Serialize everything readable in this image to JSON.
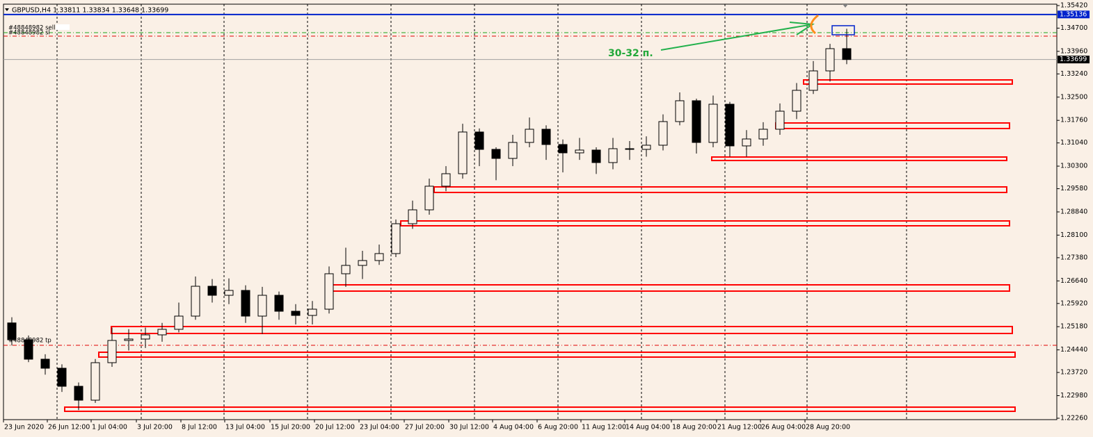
{
  "chart_data": {
    "type": "candlestick",
    "header": "GBPUSD,H4  1.33811 1.33834 1.33648 1.33699",
    "annotation": "30-32 п.",
    "background": "#faf0e6",
    "bull_color": "#faf0e6",
    "bear_color": "#000000",
    "xlim": [
      0,
      378.5
    ],
    "ylim": [
      1.2226,
      1.3542
    ],
    "yticks": [
      {
        "value": 1.3542,
        "label": "1.35420"
      },
      {
        "value": 1.347,
        "label": "1.34700"
      },
      {
        "value": 1.3396,
        "label": "1.33960"
      },
      {
        "value": 1.3324,
        "label": "1.33240"
      },
      {
        "value": 1.325,
        "label": "1.32500"
      },
      {
        "value": 1.3176,
        "label": "1.31760"
      },
      {
        "value": 1.3104,
        "label": "1.31040"
      },
      {
        "value": 1.303,
        "label": "1.30300"
      },
      {
        "value": 1.2958,
        "label": "1.29580"
      },
      {
        "value": 1.2884,
        "label": "1.28840"
      },
      {
        "value": 1.281,
        "label": "1.28100"
      },
      {
        "value": 1.2738,
        "label": "1.27380"
      },
      {
        "value": 1.2664,
        "label": "1.26640"
      },
      {
        "value": 1.2592,
        "label": "1.25920"
      },
      {
        "value": 1.2518,
        "label": "1.25180"
      },
      {
        "value": 1.2444,
        "label": "1.24440"
      },
      {
        "value": 1.2372,
        "label": "1.23720"
      },
      {
        "value": 1.2298,
        "label": "1.22980"
      },
      {
        "value": 1.2226,
        "label": "1.22260"
      }
    ],
    "xticks": [
      {
        "value": 0,
        "label": "23 Jun 2020"
      },
      {
        "value": 15.75,
        "label": "26 Jun 12:00"
      },
      {
        "value": 31.5,
        "label": "1 Jul 04:00"
      },
      {
        "value": 47.75,
        "label": "3 Jul 20:00"
      },
      {
        "value": 63.75,
        "label": "8 Jul 12:00"
      },
      {
        "value": 79.5,
        "label": "13 Jul 04:00"
      },
      {
        "value": 95.75,
        "label": "15 Jul 20:00"
      },
      {
        "value": 111.75,
        "label": "20 Jul 12:00"
      },
      {
        "value": 127.75,
        "label": "23 Jul 04:00"
      },
      {
        "value": 144,
        "label": "27 Jul 20:00"
      },
      {
        "value": 160,
        "label": "30 Jul 12:00"
      },
      {
        "value": 175.75,
        "label": "4 Aug 04:00"
      },
      {
        "value": 191.75,
        "label": "6 Aug 20:00"
      },
      {
        "value": 207.5,
        "label": "11 Aug 12:00"
      },
      {
        "value": 223.25,
        "label": "14 Aug 04:00"
      },
      {
        "value": 240,
        "label": "18 Aug 20:00"
      },
      {
        "value": 256.25,
        "label": "21 Aug 12:00"
      },
      {
        "value": 272,
        "label": "26 Aug 04:00"
      },
      {
        "value": 288,
        "label": "28 Aug 20:00"
      }
    ],
    "separators": [
      19.25,
      49.5,
      79.25,
      109.25,
      139.25,
      169.25,
      199.25,
      229.25,
      259.25,
      288.75,
      324.5
    ],
    "candles": {
      "x": [
        3,
        9,
        15,
        21,
        27,
        33,
        39,
        45,
        51,
        57,
        63,
        69,
        75,
        81,
        87,
        93,
        99,
        105,
        111,
        117,
        123,
        129,
        135,
        141,
        147,
        153,
        159,
        165,
        171,
        177,
        183,
        189,
        195,
        201,
        207,
        213,
        219,
        225,
        231,
        237,
        243,
        249,
        255,
        261,
        267,
        273,
        279,
        285,
        291,
        297,
        303
      ],
      "open": [
        1.253,
        1.24763,
        1.24143,
        1.23855,
        1.23279,
        1.22836,
        1.24032,
        1.24741,
        1.24786,
        1.24919,
        1.25096,
        1.25517,
        1.26469,
        1.26181,
        1.26336,
        1.25517,
        1.26181,
        1.25672,
        1.25539,
        1.25738,
        1.26868,
        1.27134,
        1.27289,
        1.27511,
        1.28463,
        1.28906,
        1.2966,
        1.30058,
        1.31388,
        1.30834,
        1.30546,
        1.31055,
        1.31476,
        1.30989,
        1.30723,
        1.30812,
        1.30413,
        1.30856,
        1.30834,
        1.30967,
        1.3172,
        1.32385,
        1.31055,
        1.32274,
        1.30945,
        1.31166,
        1.31476,
        1.32052,
        1.32717,
        1.33337,
        1.34046
      ],
      "high": [
        1.2548,
        1.249,
        1.243,
        1.2398,
        1.234,
        1.2415,
        1.2515,
        1.251,
        1.2515,
        1.253,
        1.2595,
        1.2678,
        1.267,
        1.2672,
        1.265,
        1.2645,
        1.263,
        1.259,
        1.26,
        1.271,
        1.277,
        1.276,
        1.278,
        1.286,
        1.292,
        1.299,
        1.303,
        1.3165,
        1.315,
        1.309,
        1.313,
        1.3185,
        1.316,
        1.3115,
        1.312,
        1.309,
        1.312,
        1.311,
        1.3125,
        1.3195,
        1.3265,
        1.3245,
        1.3255,
        1.3235,
        1.3145,
        1.317,
        1.323,
        1.3295,
        1.3365,
        1.342,
        1.3468
      ],
      "low": [
        1.2458,
        1.2405,
        1.2365,
        1.231,
        1.2252,
        1.2275,
        1.239,
        1.2442,
        1.245,
        1.247,
        1.25,
        1.254,
        1.2595,
        1.259,
        1.253,
        1.2495,
        1.254,
        1.2525,
        1.2525,
        1.256,
        1.2645,
        1.267,
        1.2715,
        1.274,
        1.283,
        1.2875,
        1.295,
        1.299,
        1.303,
        1.2985,
        1.303,
        1.309,
        1.305,
        1.301,
        1.305,
        1.3005,
        1.302,
        1.305,
        1.306,
        1.308,
        1.316,
        1.307,
        1.309,
        1.306,
        1.306,
        1.3095,
        1.313,
        1.318,
        1.326,
        1.33,
        1.3355
      ],
      "close": [
        1.24763,
        1.24143,
        1.23855,
        1.23279,
        1.22836,
        1.24032,
        1.24741,
        1.24786,
        1.24919,
        1.25096,
        1.25517,
        1.26469,
        1.26181,
        1.26336,
        1.25517,
        1.26181,
        1.25672,
        1.25539,
        1.25738,
        1.26868,
        1.27134,
        1.27289,
        1.27511,
        1.28463,
        1.28906,
        1.2966,
        1.30058,
        1.31388,
        1.30834,
        1.30546,
        1.31055,
        1.31476,
        1.30989,
        1.30723,
        1.30812,
        1.30413,
        1.30856,
        1.30834,
        1.30967,
        1.3172,
        1.32385,
        1.31055,
        1.32274,
        1.30945,
        1.31166,
        1.31476,
        1.32052,
        1.32717,
        1.33337,
        1.34046,
        1.33699
      ]
    },
    "price_line": {
      "value": 1.35136,
      "label": "1.35136",
      "color": "#0022cc"
    },
    "bid_line": {
      "value": 1.33699,
      "label": "1.33699",
      "color": "#a0a0a0"
    },
    "order_lines": [
      {
        "label": "#48848982 sell",
        "value": 1.34556,
        "color": "#1aa31a"
      },
      {
        "label": "#48848982 sl",
        "value": 1.34445,
        "color": "#e00000"
      },
      {
        "label": "#48848982 tp",
        "value": 1.24586,
        "color": "#e00000"
      }
    ],
    "zone_color": "#ff0000",
    "zones": [
      {
        "x": [
          287.5,
          362.5
        ],
        "y": [
          1.33049,
          1.32916
        ]
      },
      {
        "x": [
          277.5,
          361.5
        ],
        "y": [
          1.31676,
          1.31499
        ]
      },
      {
        "x": [
          254.5,
          360.5
        ],
        "y": [
          1.3059,
          1.30479
        ]
      },
      {
        "x": [
          154.75,
          360.5
        ],
        "y": [
          1.29637,
          1.2946
        ]
      },
      {
        "x": [
          142.75,
          361.5
        ],
        "y": [
          1.28552,
          1.28397
        ]
      },
      {
        "x": [
          115.75,
          361.5
        ],
        "y": [
          1.26514,
          1.26314
        ]
      },
      {
        "x": [
          38.75,
          362.5
        ],
        "y": [
          1.25184,
          1.24963
        ]
      },
      {
        "x": [
          34.25,
          363.5
        ],
        "y": [
          1.24365,
          1.2421
        ]
      },
      {
        "x": [
          22,
          363.5
        ],
        "y": [
          1.22614,
          1.22481
        ]
      }
    ],
    "box": {
      "x": [
        297.75,
        305.75
      ],
      "y": [
        1.34778,
        1.34489
      ],
      "color": "#0022cc"
    }
  }
}
